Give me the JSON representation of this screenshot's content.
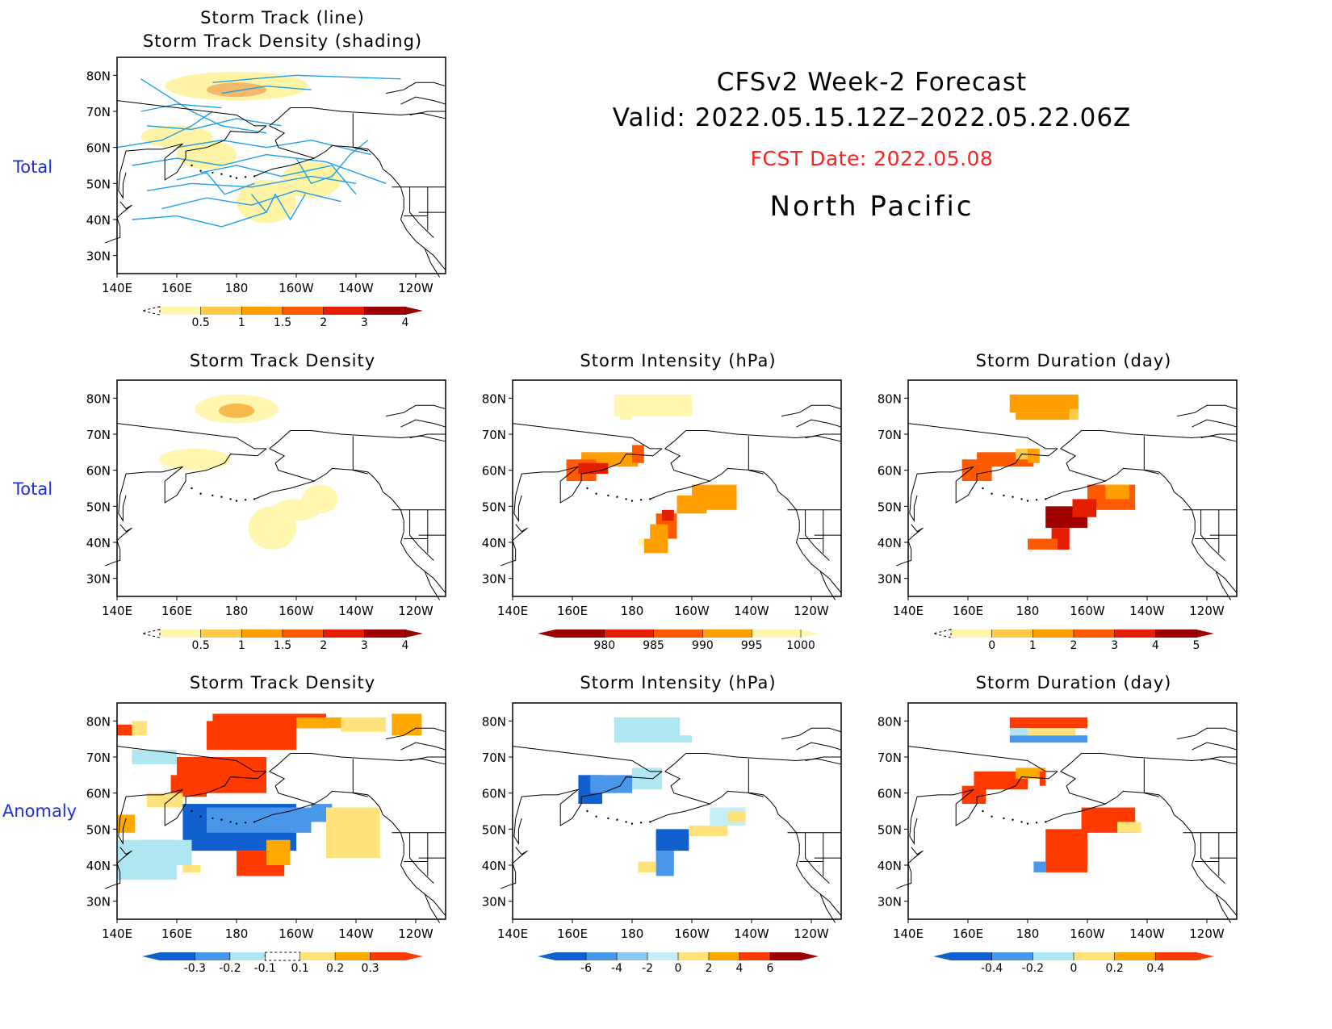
{
  "header": {
    "title": "CFSv2 Week-2 Forecast",
    "valid": "Valid: 2022.05.15.12Z–2022.05.22.06Z",
    "fcst_date": "FCST Date: 2022.05.08",
    "region": "North Pacific",
    "fcst_color": "#ff2020"
  },
  "row_labels": [
    "Total",
    "Total",
    "Anomaly"
  ],
  "axes": {
    "lat_ticks": [
      "80N",
      "70N",
      "60N",
      "50N",
      "40N",
      "30N"
    ],
    "lon_ticks": [
      "140E",
      "160E",
      "180",
      "160W",
      "140W",
      "120W"
    ],
    "lat_range": [
      25,
      85
    ],
    "lon_range": [
      140,
      250
    ]
  },
  "panels": {
    "track": {
      "title_line1": "Storm Track (line)",
      "title_line2": "Storm Track Density (shading)",
      "line_color": "#1ea0e6",
      "colorbar_labels": [
        "0.5",
        "1",
        "1.5",
        "2",
        "3",
        "4"
      ],
      "colorbar_colors": [
        "#fff6b0",
        "#ffc94a",
        "#ff9e00",
        "#ff5a00",
        "#e61e00",
        "#a00000"
      ]
    },
    "density_total": {
      "title": "Storm Track Density",
      "colorbar_labels": [
        "0.5",
        "1",
        "1.5",
        "2",
        "3",
        "4"
      ],
      "colorbar_colors": [
        "#fff6b0",
        "#ffc94a",
        "#ff9e00",
        "#ff5a00",
        "#e61e00",
        "#a00000"
      ]
    },
    "intensity_total": {
      "title": "Storm Intensity (hPa)",
      "colorbar_labels": [
        "980",
        "985",
        "990",
        "995",
        "1000"
      ],
      "colorbar_colors": [
        "#a00000",
        "#e61e00",
        "#ff5a00",
        "#ff9e00",
        "#fff6b0"
      ]
    },
    "duration_total": {
      "title": "Storm Duration (day)",
      "colorbar_labels": [
        "0",
        "1",
        "2",
        "3",
        "4",
        "5"
      ],
      "colorbar_colors": [
        "#fff6b0",
        "#ffc94a",
        "#ff9e00",
        "#ff5a00",
        "#e61e00",
        "#a00000"
      ]
    },
    "density_anom": {
      "title": "Storm Track Density",
      "colorbar_labels": [
        "-0.3",
        "-0.2",
        "-0.1",
        "0.1",
        "0.2",
        "0.3"
      ],
      "colorbar_colors": [
        "#1060d0",
        "#4a96e8",
        "#aee6f2",
        "#ffffff",
        "#ffe27a",
        "#ffa800",
        "#ff3a00"
      ]
    },
    "intensity_anom": {
      "title": "Storm Intensity (hPa)",
      "colorbar_labels": [
        "-6",
        "-4",
        "-2",
        "0",
        "2",
        "4",
        "6"
      ],
      "colorbar_colors": [
        "#1060d0",
        "#4a96e8",
        "#8cc8f0",
        "#c6eef6",
        "#ffe27a",
        "#ffa800",
        "#ff3a00",
        "#a00000"
      ]
    },
    "duration_anom": {
      "title": "Storm Duration (day)",
      "colorbar_labels": [
        "-0.4",
        "-0.2",
        "0",
        "0.2",
        "0.4"
      ],
      "colorbar_colors": [
        "#1060d0",
        "#4a96e8",
        "#aee6f2",
        "#ffe27a",
        "#ffa800",
        "#ff3a00"
      ]
    }
  }
}
